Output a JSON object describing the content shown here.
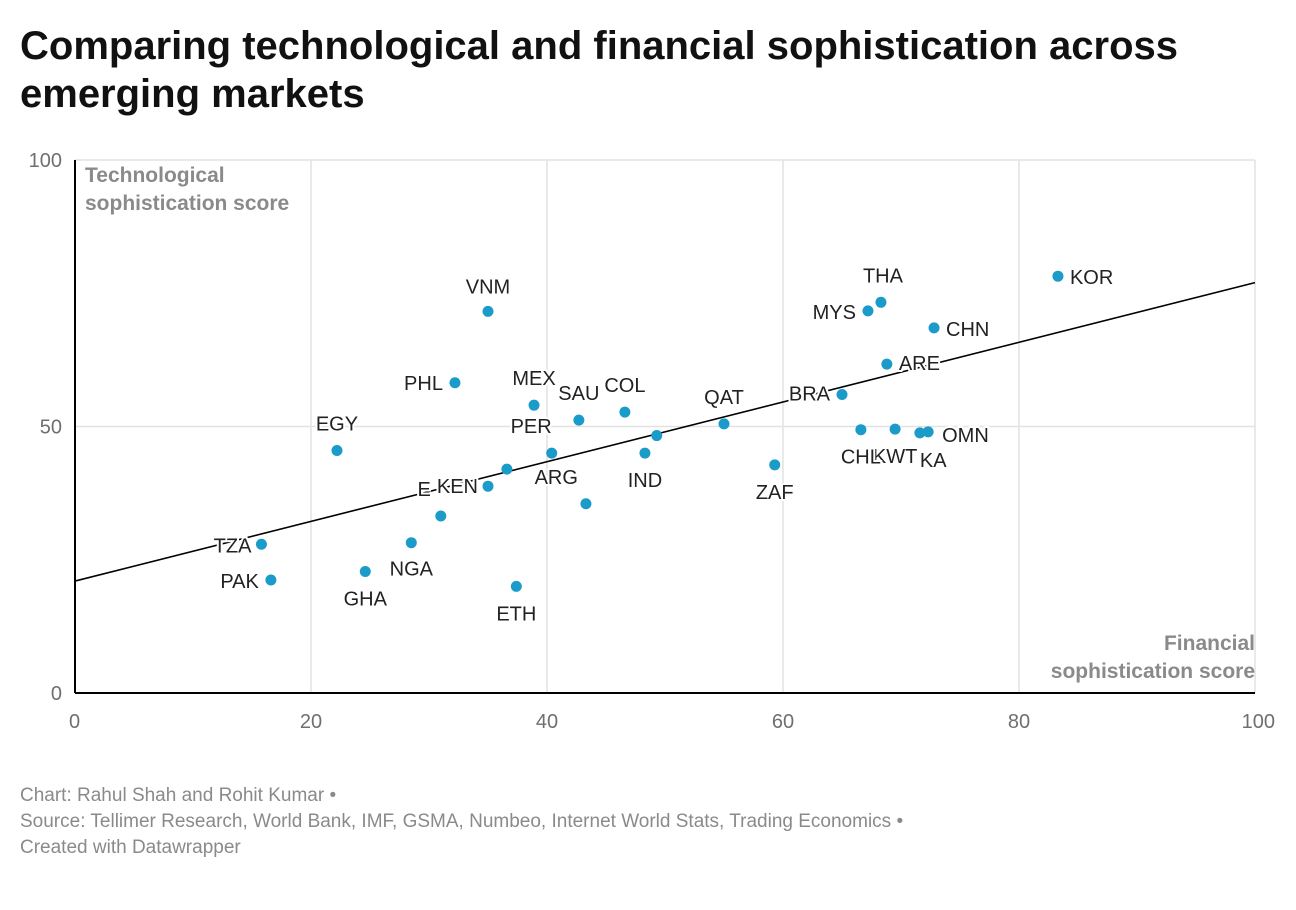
{
  "title": "Comparing technological and financial sophistication across emerging markets",
  "footer": {
    "credit": "Chart: Rahul Shah and Rohit Kumar •",
    "source": "Source: Tellimer Research, World Bank, IMF, GSMA, Numbeo, Internet World Stats, Trading Economics •",
    "created": "Created with Datawrapper"
  },
  "colors": {
    "point": "#1b9bc9",
    "trendline": "#000000",
    "grid": "#e2e2e2",
    "axis": "#000000"
  },
  "chart_data": {
    "type": "scatter",
    "title": "Comparing technological and financial sophistication across emerging markets",
    "xlabel_lines": [
      "Financial",
      "sophistication score"
    ],
    "ylabel_lines": [
      "Technological",
      "sophistication score"
    ],
    "xlim": [
      0,
      100
    ],
    "ylim": [
      0,
      100
    ],
    "xticks": [
      0,
      20,
      40,
      60,
      80,
      100
    ],
    "yticks": [
      0,
      50,
      100
    ],
    "grid": true,
    "trendline": {
      "x": [
        0,
        100
      ],
      "y": [
        21,
        77
      ]
    },
    "points": [
      {
        "label": "KOR",
        "x": 83.3,
        "y": 78.2
      },
      {
        "label": "THA",
        "x": 68.3,
        "y": 73.3
      },
      {
        "label": "MYS",
        "x": 67.2,
        "y": 71.7
      },
      {
        "label": "CHN",
        "x": 72.8,
        "y": 68.5
      },
      {
        "label": "ARE",
        "x": 68.8,
        "y": 61.7
      },
      {
        "label": "BRA",
        "x": 65.0,
        "y": 56.0
      },
      {
        "label": "OMN",
        "x": 72.3,
        "y": 49.0
      },
      {
        "label": "KA",
        "x": 71.6,
        "y": 48.8
      },
      {
        "label": "KWT",
        "x": 69.5,
        "y": 49.5
      },
      {
        "label": "CHL",
        "x": 66.6,
        "y": 49.4
      },
      {
        "label": "ZAF",
        "x": 59.3,
        "y": 42.8
      },
      {
        "label": "QAT",
        "x": 55.0,
        "y": 50.5
      },
      {
        "label": "IND",
        "x": 48.3,
        "y": 45.0
      },
      {
        "label": "COL",
        "x": 46.6,
        "y": 52.7
      },
      {
        "label": "SAU",
        "x": 42.7,
        "y": 51.2
      },
      {
        "label": "MEX",
        "x": 38.9,
        "y": 54.0
      },
      {
        "label": "ARG",
        "x": 43.3,
        "y": 35.5
      },
      {
        "label": "PER",
        "x": 40.4,
        "y": 45.0
      },
      {
        "label": "VNM",
        "x": 35.0,
        "y": 71.6
      },
      {
        "label": "PHL",
        "x": 32.2,
        "y": 58.2
      },
      {
        "label": "KEN",
        "x": 35.0,
        "y": 38.8
      },
      {
        "label": "E",
        "x": 31.0,
        "y": 33.2
      },
      {
        "label": "EGY",
        "x": 22.2,
        "y": 45.5
      },
      {
        "label": "NGA",
        "x": 28.5,
        "y": 28.2
      },
      {
        "label": "GHA",
        "x": 24.6,
        "y": 22.8
      },
      {
        "label": "ETH",
        "x": 37.4,
        "y": 20.0
      },
      {
        "label": "TZA",
        "x": 15.8,
        "y": 27.9
      },
      {
        "label": "PAK",
        "x": 16.6,
        "y": 21.2
      },
      {
        "label": "",
        "x": 36.6,
        "y": 42.0
      },
      {
        "label": "",
        "x": 49.3,
        "y": 48.3
      }
    ]
  }
}
